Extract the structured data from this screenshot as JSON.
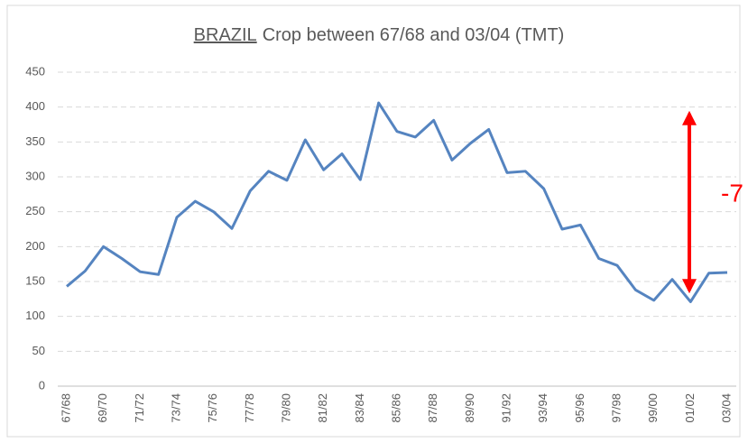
{
  "chart_data": {
    "type": "line",
    "title": {
      "emphasis": "BRAZIL",
      "text": "Crop between 67/68 and 03/04 (TMT)"
    },
    "categories": [
      "67/68",
      null,
      "69/70",
      null,
      "71/72",
      null,
      "73/74",
      null,
      "75/76",
      null,
      "77/78",
      null,
      "79/80",
      null,
      "81/82",
      null,
      "83/84",
      null,
      "85/86",
      null,
      "87/88",
      null,
      "89/90",
      null,
      "91/92",
      null,
      "93/94",
      null,
      "95/96",
      null,
      "97/98",
      null,
      "99/00",
      null,
      "01/02",
      null,
      "03/04"
    ],
    "series": [
      {
        "name": "Brazil",
        "color": "#5584c0",
        "values": [
          143,
          165,
          200,
          183,
          164,
          160,
          242,
          265,
          250,
          226,
          280,
          308,
          295,
          353,
          310,
          333,
          296,
          406,
          365,
          357,
          381,
          324,
          348,
          368,
          306,
          308,
          283,
          225,
          231,
          183,
          173,
          138,
          123,
          153,
          121,
          162,
          163
        ]
      }
    ],
    "ylim": [
      0,
      450
    ],
    "yticks": [
      0,
      50,
      100,
      150,
      200,
      250,
      300,
      350,
      400,
      450
    ],
    "grid": true,
    "annotation": "-7"
  }
}
